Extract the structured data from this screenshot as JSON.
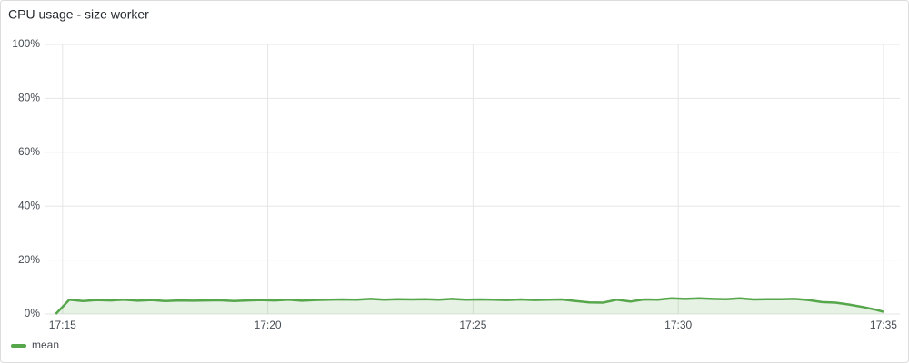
{
  "chart_data": {
    "type": "line",
    "title": "CPU usage - size worker",
    "x": [
      "17:14:50",
      "17:15:10",
      "17:15:30",
      "17:15:50",
      "17:16:10",
      "17:16:30",
      "17:16:50",
      "17:17:10",
      "17:17:30",
      "17:17:50",
      "17:18:10",
      "17:18:30",
      "17:18:50",
      "17:19:10",
      "17:19:30",
      "17:19:50",
      "17:20:10",
      "17:20:30",
      "17:20:50",
      "17:21:10",
      "17:21:30",
      "17:21:50",
      "17:22:10",
      "17:22:30",
      "17:22:50",
      "17:23:10",
      "17:23:30",
      "17:23:50",
      "17:24:10",
      "17:24:30",
      "17:24:50",
      "17:25:10",
      "17:25:30",
      "17:25:50",
      "17:26:10",
      "17:26:30",
      "17:26:50",
      "17:27:10",
      "17:27:30",
      "17:27:50",
      "17:28:10",
      "17:28:30",
      "17:28:50",
      "17:29:10",
      "17:29:30",
      "17:29:50",
      "17:30:10",
      "17:30:30",
      "17:30:50",
      "17:31:10",
      "17:31:30",
      "17:31:50",
      "17:32:10",
      "17:32:30",
      "17:32:50",
      "17:33:10",
      "17:33:30",
      "17:33:50",
      "17:34:10",
      "17:34:30",
      "17:34:50",
      "17:35:00"
    ],
    "series": [
      {
        "name": "mean",
        "color": "#56a64b",
        "values": [
          0,
          5.3,
          4.8,
          5.2,
          5.0,
          5.3,
          4.9,
          5.2,
          4.8,
          5.0,
          4.9,
          5.0,
          5.1,
          4.8,
          5.0,
          5.2,
          5.0,
          5.3,
          4.9,
          5.2,
          5.3,
          5.4,
          5.3,
          5.6,
          5.3,
          5.5,
          5.4,
          5.5,
          5.3,
          5.6,
          5.3,
          5.4,
          5.3,
          5.2,
          5.4,
          5.2,
          5.3,
          5.4,
          4.8,
          4.3,
          4.2,
          5.3,
          4.6,
          5.4,
          5.3,
          5.8,
          5.6,
          5.8,
          5.6,
          5.5,
          5.8,
          5.4,
          5.5,
          5.5,
          5.6,
          5.2,
          4.4,
          4.2,
          3.5,
          2.6,
          1.5,
          0.8
        ]
      }
    ],
    "xlim": [
      "17:14:35",
      "17:35:24"
    ],
    "xticks": [
      "17:15",
      "17:20",
      "17:25",
      "17:30",
      "17:35"
    ],
    "ylim": [
      0,
      100
    ],
    "yticks": [
      {
        "value": 0,
        "label": "0%"
      },
      {
        "value": 20,
        "label": "20%"
      },
      {
        "value": 40,
        "label": "40%"
      },
      {
        "value": 60,
        "label": "60%"
      },
      {
        "value": 80,
        "label": "80%"
      },
      {
        "value": 100,
        "label": "100%"
      }
    ],
    "grid": true,
    "legend": "bottom-left"
  }
}
